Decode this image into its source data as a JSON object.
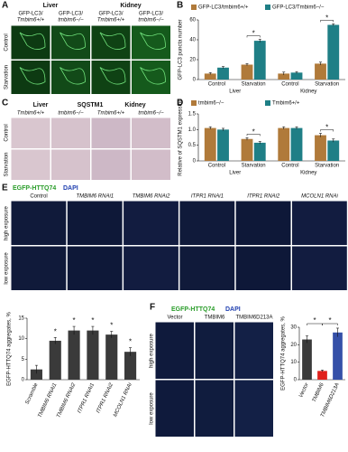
{
  "panel_labels": [
    "A",
    "B",
    "C",
    "D",
    "E",
    "F"
  ],
  "panel_a": {
    "tissues": [
      "Liver",
      "Kidney"
    ],
    "columns": [
      [
        "GFP-LC3/",
        "Tmbim6+/+"
      ],
      [
        "GFP-LC3/",
        "tmbim6−/−"
      ],
      [
        "GFP-LC3/",
        "Tmbim6+/+"
      ],
      [
        "GFP-LC3/",
        "tmbim6−/−"
      ]
    ],
    "rows": [
      "Control",
      "Starvation"
    ]
  },
  "panel_c": {
    "tissues": [
      "Liver",
      "Kidney"
    ],
    "stain": "SQSTM1",
    "columns": [
      "Tmbim6+/+",
      "tmbim6−/−",
      "Tmbim6+/+",
      "tmbim6−/−"
    ],
    "rows": [
      "Control",
      "Starvation"
    ]
  },
  "panel_e": {
    "stains": [
      "EGFP-HTTQ74",
      "DAPI"
    ],
    "columns": [
      "Control",
      "TMBIM6 RNAi1",
      "TMBIM6 RNAi2",
      "ITPR1 RNAi1",
      "ITPR1 RNAi2",
      "MCOLN1 RNAi"
    ],
    "rows": [
      "high exposure",
      "low exposure"
    ]
  },
  "panel_f": {
    "stains": [
      "EGFP-HTTQ74",
      "DAPI"
    ],
    "columns": [
      "Vector",
      "TMBIM6",
      "TMBIM6D213A"
    ],
    "rows": [
      "high exposure",
      "low exposure"
    ]
  },
  "chart_data": [
    {
      "type": "bar",
      "ylabel": "GFP-LC3 puncta number",
      "categories": [
        "Control",
        "Starvation",
        "Control",
        "Starvation"
      ],
      "groups": [
        "Liver",
        "Kidney"
      ],
      "series": [
        {
          "name": "GFP-LC3/tmbim6+/+",
          "color": "#b07a3a",
          "values": [
            6,
            15,
            6,
            16
          ],
          "errors": [
            1,
            1,
            1.5,
            1.5
          ]
        },
        {
          "name": "GFP-LC3/Tmbim6−/−",
          "color": "#1f7f86",
          "values": [
            12,
            39,
            7,
            55
          ],
          "errors": [
            1,
            1.5,
            1,
            1
          ]
        }
      ],
      "ylim": [
        0,
        60
      ],
      "yticks": [
        0,
        20,
        40,
        60
      ],
      "annotations": [
        "*",
        "*"
      ]
    },
    {
      "type": "bar",
      "ylabel": "Relative of SQSTM1 expression",
      "categories": [
        "Control",
        "Starvation",
        "Control",
        "Starvation"
      ],
      "groups": [
        "Liver",
        "Kidney"
      ],
      "series": [
        {
          "name": "tmbim6−/−",
          "color": "#b07a3a",
          "values": [
            1.05,
            0.7,
            1.05,
            0.82
          ],
          "errors": [
            0.04,
            0.04,
            0.04,
            0.06
          ]
        },
        {
          "name": "Tmbim6+/+",
          "color": "#1f7f86",
          "values": [
            1.0,
            0.58,
            1.05,
            0.65
          ],
          "errors": [
            0.04,
            0.04,
            0.04,
            0.05
          ]
        }
      ],
      "ylim": [
        0,
        1.5
      ],
      "yticks": [
        0,
        0.5,
        {
          "value": 1,
          "label": "1.0"
        },
        1.5
      ],
      "annotations": [
        "*",
        "*"
      ]
    },
    {
      "type": "bar",
      "ylabel": "EGFP-HTTQ74 aggregates, %",
      "categories": [
        "Scramble",
        "TMBIM6 RNAi1",
        "TMBIM6 RNAi2",
        "ITPR1 RNAi1",
        "ITPR1 RNAi2",
        "MCOLN1 RNAi"
      ],
      "series": [
        {
          "color": "#3a3a3a",
          "values": [
            2.5,
            9.5,
            12,
            12,
            11,
            6.8
          ],
          "errors": [
            1,
            0.8,
            1,
            1,
            0.8,
            1
          ]
        }
      ],
      "ylim": [
        0,
        15
      ],
      "yticks": [
        0,
        5,
        10,
        15
      ],
      "annotations": [
        "*",
        "*",
        "*",
        "*",
        "*"
      ]
    },
    {
      "type": "bar",
      "ylabel": "EGFP-HTTQ74 aggregates, %",
      "categories": [
        "Vector",
        "TMBIM6",
        "TMBIM6D213A"
      ],
      "series": [
        {
          "colors": [
            "#3a3a3a",
            "#e0201b",
            "#3550a8"
          ],
          "values": [
            23,
            5,
            27
          ],
          "errors": [
            2,
            0.5,
            2.5
          ]
        }
      ],
      "ylim": [
        0,
        30
      ],
      "yticks": [
        0,
        10,
        20,
        30
      ],
      "annotations": [
        "*",
        "*"
      ]
    }
  ]
}
